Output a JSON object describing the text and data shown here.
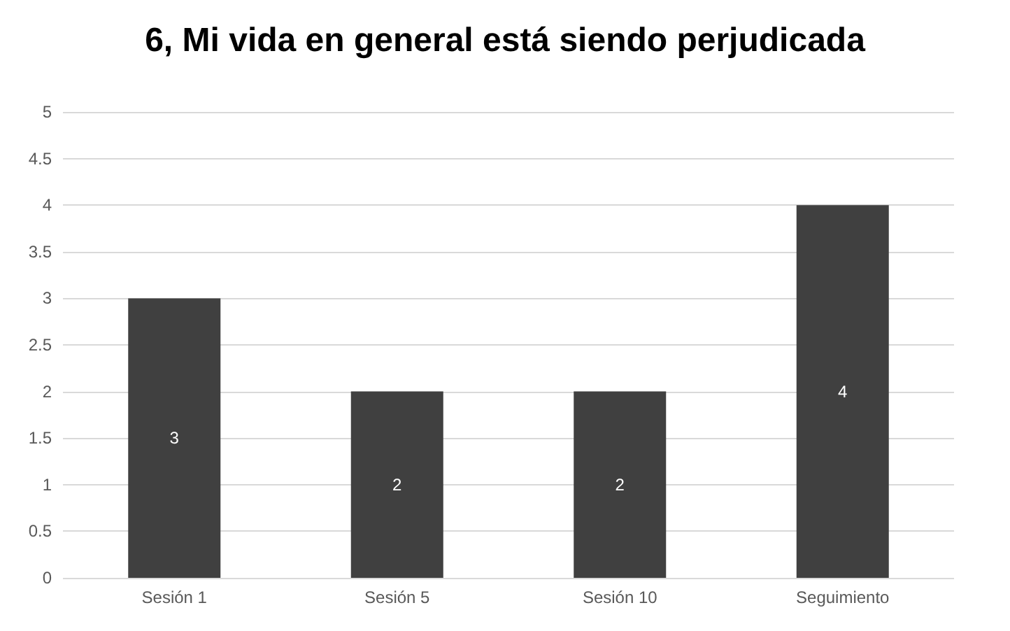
{
  "chart_data": {
    "type": "bar",
    "title": "6, Mi vida en general está siendo perjudicada",
    "categories": [
      "Sesión 1",
      "Sesión 5",
      "Sesión 10",
      "Seguimiento"
    ],
    "values": [
      3,
      2,
      2,
      4
    ],
    "color": "#404040",
    "ylim": [
      0,
      5
    ],
    "yticks": [
      0,
      0.5,
      1,
      1.5,
      2,
      2.5,
      3,
      3.5,
      4,
      4.5,
      5
    ],
    "grid": "y",
    "data_labels": true
  }
}
